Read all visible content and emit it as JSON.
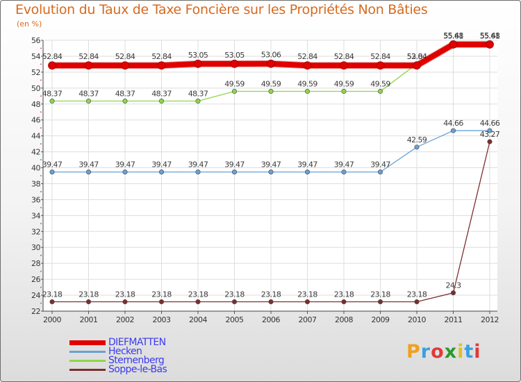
{
  "chart_data": {
    "type": "line",
    "title": "Evolution du Taux de Taxe Foncière sur les Propriétés Non Bâties",
    "ylabel": "(en %)",
    "xlabel": "",
    "ylim": [
      22,
      56
    ],
    "yticks": [
      22,
      24,
      26,
      28,
      30,
      32,
      34,
      36,
      38,
      40,
      42,
      44,
      46,
      48,
      50,
      52,
      54,
      56
    ],
    "categories": [
      "2000",
      "2001",
      "2002",
      "2003",
      "2004",
      "2005",
      "2006",
      "2007",
      "2008",
      "2009",
      "2010",
      "2011",
      "2012"
    ],
    "series": [
      {
        "name": "DIEFMATTEN",
        "color": "#e00000",
        "values": [
          52.84,
          52.84,
          52.84,
          52.84,
          53.05,
          53.05,
          53.06,
          52.84,
          52.84,
          52.84,
          52.84,
          55.48,
          55.48
        ],
        "labels": [
          "52.84",
          "52.84",
          "52.84",
          "52.84",
          "53.05",
          "53.05",
          "53.06",
          "52.84",
          "52.84",
          "52.84",
          "52.84",
          "55.48",
          "55.48"
        ]
      },
      {
        "name": "Hecken",
        "color": "#6aa0d4",
        "values": [
          39.47,
          39.47,
          39.47,
          39.47,
          39.47,
          39.47,
          39.47,
          39.47,
          39.47,
          39.47,
          42.59,
          44.66,
          44.66
        ],
        "labels": [
          "39.47",
          "39.47",
          "39.47",
          "39.47",
          "39.47",
          "39.47",
          "39.47",
          "39.47",
          "39.47",
          "39.47",
          "42.59",
          "44.66",
          "44.66"
        ]
      },
      {
        "name": "Sternenberg",
        "color": "#8ed64a",
        "values": [
          48.37,
          48.37,
          48.37,
          48.37,
          48.37,
          49.59,
          49.59,
          49.59,
          49.59,
          49.59,
          53.04,
          55.61,
          55.61
        ],
        "labels": [
          "48.37",
          "48.37",
          "48.37",
          "48.37",
          "48.37",
          "49.59",
          "49.59",
          "49.59",
          "49.59",
          "49.59",
          "53.04",
          "55.61",
          "55.61"
        ]
      },
      {
        "name": "Soppe-le-Bas",
        "color": "#7a3030",
        "values": [
          23.18,
          23.18,
          23.18,
          23.18,
          23.18,
          23.18,
          23.18,
          23.18,
          23.18,
          23.18,
          23.18,
          24.3,
          43.27
        ],
        "labels": [
          "23.18",
          "23.18",
          "23.18",
          "23.18",
          "23.18",
          "23.18",
          "23.18",
          "23.18",
          "23.18",
          "23.18",
          "23.18",
          "24.3",
          "43.27"
        ]
      }
    ]
  },
  "legend": {
    "items": [
      {
        "label": "DIEFMATTEN",
        "color": "#e00000"
      },
      {
        "label": "Hecken",
        "color": "#6aa0d4"
      },
      {
        "label": "Sternenberg",
        "color": "#8ed64a"
      },
      {
        "label": "Soppe-le-Bas",
        "color": "#7a3030"
      }
    ]
  },
  "logo": {
    "text": "Proxiti",
    "letters": [
      "P",
      "r",
      "o",
      "x",
      "i",
      "t",
      "i"
    ],
    "colors": [
      "#f0a020",
      "#3aa0e0",
      "#e03a3a",
      "#2a9a2a",
      "#e0c020",
      "#3aa0e0",
      "#e03a3a"
    ]
  }
}
